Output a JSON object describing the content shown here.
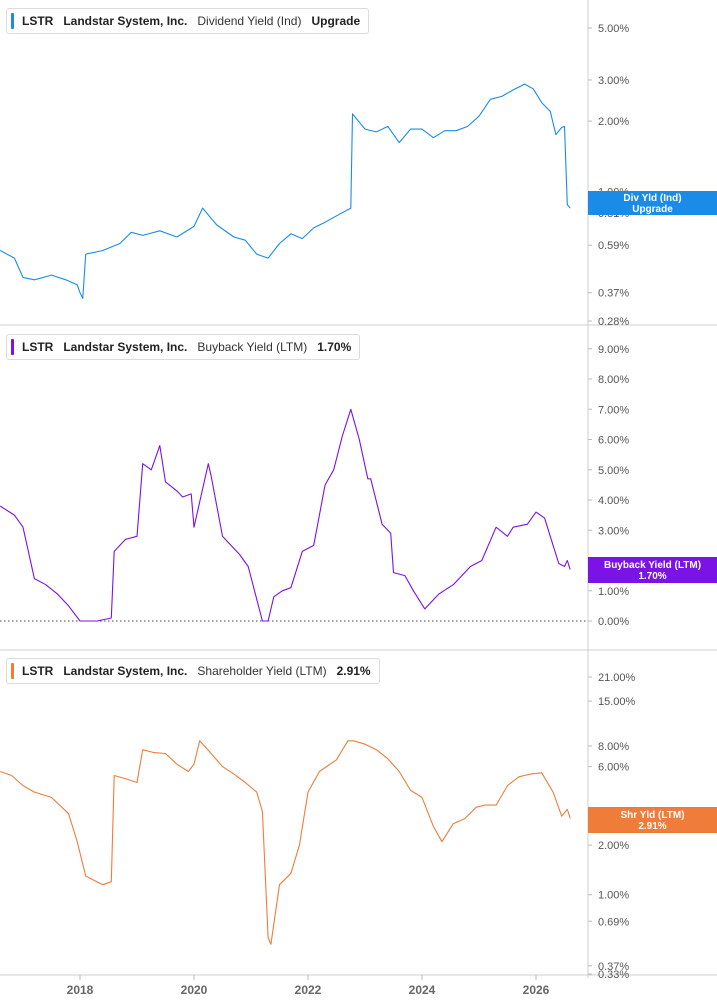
{
  "colors": {
    "dividend": "#1a8ce8",
    "buyback": "#7b12e6",
    "shareholder": "#f07c3a",
    "grid": "#cccccc",
    "axis_text": "#555555"
  },
  "panels": [
    {
      "ticker": "LSTR",
      "company": "Landstar System, Inc.",
      "metric": "Dividend Yield (Ind)",
      "value": "Upgrade",
      "tag_line1": "Div Yld (Ind)",
      "tag_line2": "Upgrade"
    },
    {
      "ticker": "LSTR",
      "company": "Landstar System, Inc.",
      "metric": "Buyback Yield (LTM)",
      "value": "1.70%",
      "tag_line1": "Buyback Yield (LTM)",
      "tag_line2": "1.70%"
    },
    {
      "ticker": "LSTR",
      "company": "Landstar System, Inc.",
      "metric": "Shareholder Yield (LTM)",
      "value": "2.91%",
      "tag_line1": "Shr Yld (LTM)",
      "tag_line2": "2.91%"
    }
  ],
  "chart_data": [
    {
      "type": "line",
      "title": "LSTR Landstar System, Inc. Dividend Yield (Ind)",
      "series": [
        {
          "name": "Dividend Yield (Ind)",
          "color": "#1a8ce8",
          "x": [
            2016.6,
            2016.85,
            2017.0,
            2017.2,
            2017.5,
            2017.75,
            2017.95,
            2018.0,
            2018.05,
            2018.1,
            2018.4,
            2018.7,
            2018.9,
            2019.1,
            2019.4,
            2019.7,
            2020.0,
            2020.15,
            2020.4,
            2020.7,
            2020.9,
            2021.1,
            2021.3,
            2021.5,
            2021.7,
            2021.9,
            2022.1,
            2022.3,
            2022.55,
            2022.75,
            2022.78,
            2023.0,
            2023.2,
            2023.4,
            2023.6,
            2023.8,
            2024.0,
            2024.2,
            2024.4,
            2024.6,
            2024.8,
            2025.0,
            2025.2,
            2025.4,
            2025.6,
            2025.8,
            2025.95,
            2026.1,
            2026.25,
            2026.35,
            2026.45,
            2026.5,
            2026.55,
            2026.6
          ],
          "y": [
            0.56,
            0.52,
            0.43,
            0.42,
            0.44,
            0.42,
            0.4,
            0.37,
            0.35,
            0.54,
            0.56,
            0.6,
            0.67,
            0.65,
            0.68,
            0.64,
            0.71,
            0.85,
            0.72,
            0.64,
            0.62,
            0.54,
            0.52,
            0.6,
            0.66,
            0.63,
            0.7,
            0.74,
            0.8,
            0.85,
            2.15,
            1.85,
            1.8,
            1.9,
            1.62,
            1.85,
            1.85,
            1.7,
            1.82,
            1.82,
            1.9,
            2.1,
            2.48,
            2.55,
            2.72,
            2.88,
            2.75,
            2.4,
            2.2,
            1.75,
            1.88,
            1.9,
            0.88,
            0.85
          ]
        }
      ],
      "yticks": [
        "5.00%",
        "3.00%",
        "2.00%",
        "1.00%",
        "0.81%",
        "0.59%",
        "0.37%",
        "0.28%"
      ]
    },
    {
      "type": "line",
      "title": "LSTR Landstar System, Inc. Buyback Yield (LTM)",
      "series": [
        {
          "name": "Buyback Yield (LTM)",
          "color": "#7b12e6",
          "x": [
            2016.6,
            2016.85,
            2017.0,
            2017.2,
            2017.4,
            2017.6,
            2017.8,
            2018.0,
            2018.3,
            2018.55,
            2018.6,
            2018.8,
            2019.0,
            2019.1,
            2019.25,
            2019.4,
            2019.5,
            2019.7,
            2019.8,
            2019.95,
            2020.0,
            2020.25,
            2020.3,
            2020.5,
            2020.6,
            2020.8,
            2020.95,
            2021.2,
            2021.3,
            2021.4,
            2021.55,
            2021.7,
            2021.9,
            2022.1,
            2022.3,
            2022.45,
            2022.6,
            2022.75,
            2022.9,
            2023.05,
            2023.1,
            2023.3,
            2023.45,
            2023.5,
            2023.7,
            2023.85,
            2024.05,
            2024.3,
            2024.55,
            2024.7,
            2024.85,
            2025.05,
            2025.3,
            2025.5,
            2025.6,
            2025.85,
            2026.0,
            2026.15,
            2026.3,
            2026.4,
            2026.5,
            2026.55,
            2026.6
          ],
          "y": [
            3.8,
            3.5,
            3.1,
            1.4,
            1.2,
            0.9,
            0.5,
            0.0,
            0.0,
            0.1,
            2.3,
            2.7,
            2.8,
            5.2,
            5.0,
            5.8,
            4.6,
            4.3,
            4.1,
            4.2,
            3.1,
            5.2,
            4.8,
            2.8,
            2.6,
            2.2,
            1.8,
            0.0,
            0.0,
            0.8,
            1.0,
            1.1,
            2.3,
            2.5,
            4.5,
            5.0,
            6.1,
            7.0,
            6.0,
            4.7,
            4.7,
            3.2,
            2.9,
            1.6,
            1.5,
            1.0,
            0.4,
            0.9,
            1.2,
            1.5,
            1.8,
            2.0,
            3.1,
            2.8,
            3.1,
            3.2,
            3.6,
            3.4,
            2.5,
            1.9,
            1.8,
            2.0,
            1.7
          ]
        }
      ],
      "yticks": [
        "9.00%",
        "8.00%",
        "7.00%",
        "6.00%",
        "5.00%",
        "4.00%",
        "3.00%",
        "1.00%",
        "0.00%"
      ],
      "baseline": 0
    },
    {
      "type": "line",
      "title": "LSTR Landstar System, Inc. Shareholder Yield (LTM)",
      "series": [
        {
          "name": "Shareholder Yield (LTM)",
          "color": "#f07c3a",
          "x": [
            2016.6,
            2016.8,
            2017.0,
            2017.2,
            2017.5,
            2017.8,
            2017.95,
            2018.1,
            2018.4,
            2018.55,
            2018.6,
            2018.85,
            2019.0,
            2019.1,
            2019.3,
            2019.5,
            2019.7,
            2019.9,
            2020.0,
            2020.1,
            2020.3,
            2020.5,
            2020.7,
            2020.9,
            2021.1,
            2021.2,
            2021.3,
            2021.35,
            2021.5,
            2021.7,
            2021.85,
            2022.0,
            2022.2,
            2022.5,
            2022.7,
            2022.8,
            2023.0,
            2023.2,
            2023.4,
            2023.6,
            2023.8,
            2024.0,
            2024.2,
            2024.35,
            2024.55,
            2024.75,
            2024.95,
            2025.1,
            2025.3,
            2025.5,
            2025.7,
            2025.9,
            2026.1,
            2026.3,
            2026.45,
            2026.55,
            2026.6
          ],
          "y": [
            5.6,
            5.3,
            4.6,
            4.2,
            3.9,
            3.1,
            2.1,
            1.3,
            1.15,
            1.2,
            5.3,
            5.0,
            4.8,
            7.6,
            7.3,
            7.2,
            6.2,
            5.6,
            6.2,
            8.6,
            7.2,
            6.0,
            5.4,
            4.8,
            4.2,
            3.2,
            0.55,
            0.5,
            1.15,
            1.35,
            2.0,
            4.2,
            5.6,
            6.6,
            8.6,
            8.6,
            8.2,
            7.6,
            6.7,
            5.6,
            4.3,
            3.9,
            2.6,
            2.1,
            2.7,
            2.9,
            3.4,
            3.5,
            3.5,
            4.6,
            5.2,
            5.4,
            5.5,
            4.2,
            3.0,
            3.3,
            2.91
          ]
        }
      ],
      "yticks": [
        "21.00%",
        "15.00%",
        "8.00%",
        "6.00%",
        "2.00%",
        "1.00%",
        "0.69%",
        "0.37%",
        "0.33%"
      ]
    }
  ],
  "x_axis": {
    "ticks": [
      "2018",
      "2020",
      "2022",
      "2024",
      "2026"
    ]
  }
}
